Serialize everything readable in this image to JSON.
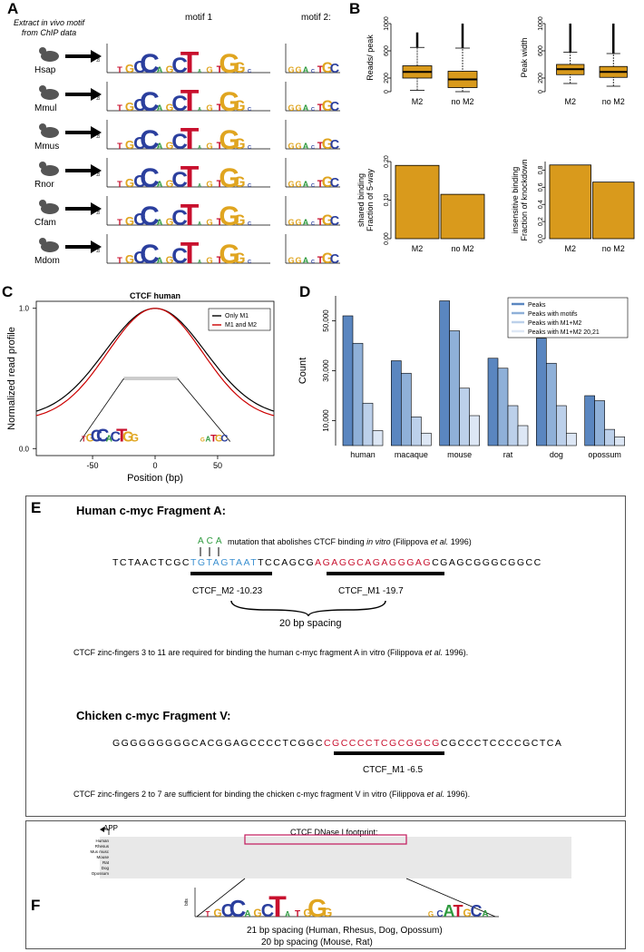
{
  "panelA": {
    "label": "A",
    "intro": [
      "Extract in vivo motif",
      "from ChIP data"
    ],
    "motif1_title": "motif 1",
    "motif2_title": "motif 2:",
    "species": [
      "Hsap",
      "Mmul",
      "Mmus",
      "Rnor",
      "Cfam",
      "Mdom"
    ],
    "bits_label": "bits"
  },
  "panelB": {
    "label": "B",
    "charts": [
      {
        "type": "box",
        "ylabel": "Reads/ peak",
        "categories": [
          "M2",
          "no M2"
        ],
        "yticks": [
          "0",
          "200",
          "600",
          "1000"
        ]
      },
      {
        "type": "box",
        "ylabel": "Peak width",
        "categories": [
          "M2",
          "no M2"
        ],
        "yticks": [
          "0",
          "200",
          "600",
          "1000"
        ]
      },
      {
        "type": "bar",
        "ylabel": [
          "Fraction of 5-way",
          "shared binding"
        ],
        "categories": [
          "M2",
          "no M2"
        ],
        "yticks": [
          "0.00",
          "0.10",
          "0.20"
        ]
      },
      {
        "type": "bar",
        "ylabel": [
          "Fraction of knockdown",
          "insensitive binding"
        ],
        "categories": [
          "M2",
          "no M2"
        ],
        "yticks": [
          "0.0",
          "0.2",
          "0.4",
          "0.6",
          "0.8"
        ]
      }
    ]
  },
  "chart_data": [
    {
      "type": "box",
      "ylabel": "Reads/ peak",
      "categories": [
        "M2",
        "no M2"
      ],
      "ylim": [
        0,
        1000
      ],
      "boxes": [
        {
          "q1": 200,
          "median": 290,
          "q3": 380,
          "whisker_low": 20,
          "whisker_high": 650,
          "outlier_max": 870
        },
        {
          "q1": 60,
          "median": 180,
          "q3": 300,
          "whisker_low": 0,
          "whisker_high": 640,
          "outlier_max": 1050
        }
      ]
    },
    {
      "type": "box",
      "ylabel": "Peak width",
      "categories": [
        "M2",
        "no M2"
      ],
      "ylim": [
        0,
        1000
      ],
      "boxes": [
        {
          "q1": 250,
          "median": 330,
          "q3": 400,
          "whisker_low": 120,
          "whisker_high": 580,
          "outlier_max": 1050
        },
        {
          "q1": 210,
          "median": 290,
          "q3": 370,
          "whisker_low": 80,
          "whisker_high": 560,
          "outlier_max": 1050
        }
      ]
    },
    {
      "type": "bar",
      "ylabel": "Fraction of 5-way shared binding",
      "categories": [
        "M2",
        "no M2"
      ],
      "values": [
        0.19,
        0.115
      ],
      "ylim": [
        0,
        0.2
      ]
    },
    {
      "type": "bar",
      "ylabel": "Fraction of knockdown insensitive binding",
      "categories": [
        "M2",
        "no M2"
      ],
      "values": [
        0.86,
        0.66
      ],
      "ylim": [
        0,
        0.9
      ]
    },
    {
      "type": "line",
      "title": "CTCF  human",
      "xlabel": "Position (bp)",
      "ylabel": "Normalized read profile",
      "xticks": [
        "-50",
        "0",
        "50"
      ],
      "yticks": [
        "0.0",
        "1.0"
      ],
      "xlim": [
        -95,
        95
      ],
      "ylim": [
        -0.05,
        1.05
      ],
      "legend": [
        "Only M1",
        "M1 and M2"
      ],
      "series": [
        {
          "name": "Only M1",
          "color": "#000000",
          "sigma": 40,
          "floor": 0.22
        },
        {
          "name": "M1 and M2",
          "color": "#cc0000",
          "sigma": 38,
          "floor": 0.2
        }
      ]
    },
    {
      "type": "bar",
      "ylabel": "Count",
      "categories": [
        "human",
        "macaque",
        "mouse",
        "rat",
        "dog",
        "opossum"
      ],
      "yticks": [
        "10,000",
        "30,000",
        "50,000"
      ],
      "ylim": [
        0,
        60000
      ],
      "series": [
        {
          "name": "Peaks",
          "values": [
            52000,
            34000,
            58000,
            35000,
            43000,
            20000
          ],
          "color": "#5a86c0"
        },
        {
          "name": "Peaks with motifs",
          "values": [
            41000,
            29000,
            46000,
            31000,
            33000,
            18000
          ],
          "color": "#8fb0d8"
        },
        {
          "name": "Peaks with M1+M2",
          "values": [
            17000,
            11500,
            23000,
            16000,
            16000,
            6500
          ],
          "color": "#bcd0ea"
        },
        {
          "name": "Peaks with M1+M2 20,21",
          "values": [
            6000,
            5000,
            12000,
            8000,
            5000,
            3500
          ],
          "color": "#dde7f5"
        }
      ]
    }
  ],
  "panelC": {
    "label": "C",
    "title": "CTCF  human",
    "xlabel": "Position (bp)",
    "ylabel": "Normalized read profile",
    "legend": [
      "Only M1",
      "M1 and M2"
    ],
    "xticks": [
      "-50",
      "0",
      "50"
    ],
    "yticks": [
      "0.0",
      "1.0"
    ]
  },
  "panelD": {
    "label": "D",
    "ylabel": "Count",
    "legend": [
      "Peaks",
      "Peaks with motifs",
      "Peaks with M1+M2",
      "Peaks with M1+M2 20,21"
    ],
    "categories": [
      "human",
      "macaque",
      "mouse",
      "rat",
      "dog",
      "opossum"
    ],
    "yticks": [
      "10,000",
      "30,000",
      "50,000"
    ]
  },
  "panelE": {
    "label": "E",
    "title1": "Human c-myc Fragment A:",
    "mutation": "ACA",
    "mutation_note": "mutation that abolishes CTCF binding",
    "mutation_italic": "in vitro",
    "mutation_ref": "(Filippova",
    "mutation_etal": "et al.",
    "mutation_year": "1996)",
    "seq1_pre": "TCTAACTCGC",
    "seq1_m2": "TGTAGTAAT",
    "seq1_mid": "TCCAGCG",
    "seq1_m1": "AGAGGCAGAGGGAG",
    "seq1_post": "CGAGCGGGCGGCC",
    "m2_label": "CTCF_M2 -10.23",
    "m1_label": "CTCF_M1 -19.7",
    "spacing": "20 bp  spacing",
    "note1": "CTCF zinc-fingers 3 to 11 are required for binding the human c-myc fragment A in vitro (Filippova",
    "note1_etal": "et al.",
    "note1_end": "1996).",
    "title2": "Chicken c-myc Fragment V:",
    "seq2_pre": "GGGGGGGGGCACGGAGCCCCTCGGC",
    "seq2_m1": "CGCCCCTCGCGGCG",
    "seq2_post": "CGCCCTCCCCGCTCA",
    "m1b_label": "CTCF_M1 -6.5",
    "note2": "CTCF zinc-fingers 2 to 7 are sufficient for binding the chicken c-myc fragment V in vitro (Filippova",
    "note2_etal": "et al.",
    "note2_end": "1996)."
  },
  "panelF": {
    "label": "F",
    "app": "APP",
    "footprint": "CTCF DNase I footprint:",
    "species": [
      "Human",
      "Rhesus",
      "Mus musc",
      "Mouse",
      "Rat",
      "Dog",
      "Opossum"
    ],
    "bits_label": "bits",
    "spacing1": "21 bp spacing (Human, Rhesus, Dog, Opossum)",
    "spacing2": "20 bp spacing (Mouse, Rat)"
  },
  "colors": {
    "orange": "#d99a1c",
    "blue": "#3a8fd0",
    "red": "#c8102e",
    "green": "#2e9a3e",
    "magenta": "#c2185b"
  }
}
